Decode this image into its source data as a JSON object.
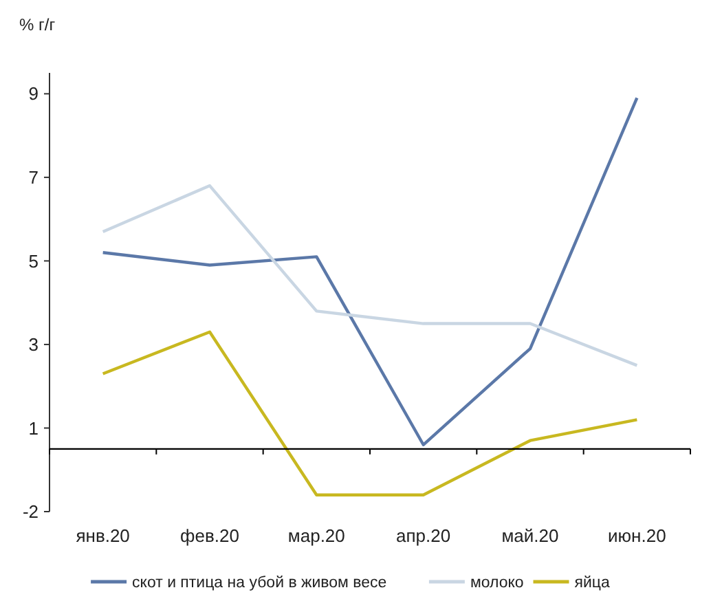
{
  "chart_data": {
    "type": "line",
    "ylabel": "% г/г",
    "categories": [
      "янв.20",
      "фев.20",
      "мар.20",
      "апр.20",
      "май.20",
      "июн.20"
    ],
    "series": [
      {
        "name": "скот и птица на убой в живом весе",
        "color": "#5b78a8",
        "values": [
          4.7,
          4.4,
          4.6,
          0.1,
          2.4,
          8.4
        ]
      },
      {
        "name": "молоко",
        "color": "#c9d6e3",
        "values": [
          5.2,
          6.3,
          3.3,
          3.0,
          3.0,
          2.0
        ]
      },
      {
        "name": "яйца",
        "color": "#c8b820",
        "values": [
          1.8,
          2.8,
          -1.1,
          -1.1,
          0.2,
          0.7
        ]
      }
    ],
    "ylim": [
      -1.5,
      9
    ],
    "yticks": [
      {
        "value": -1.5,
        "label": "-2"
      },
      {
        "value": 0.5,
        "label": "1"
      },
      {
        "value": 2.5,
        "label": "3"
      },
      {
        "value": 4.5,
        "label": "5"
      },
      {
        "value": 6.5,
        "label": "7"
      },
      {
        "value": 8.5,
        "label": "9"
      }
    ],
    "grid": false,
    "legend": "bottom",
    "marker": "none",
    "line_style": "solid"
  }
}
